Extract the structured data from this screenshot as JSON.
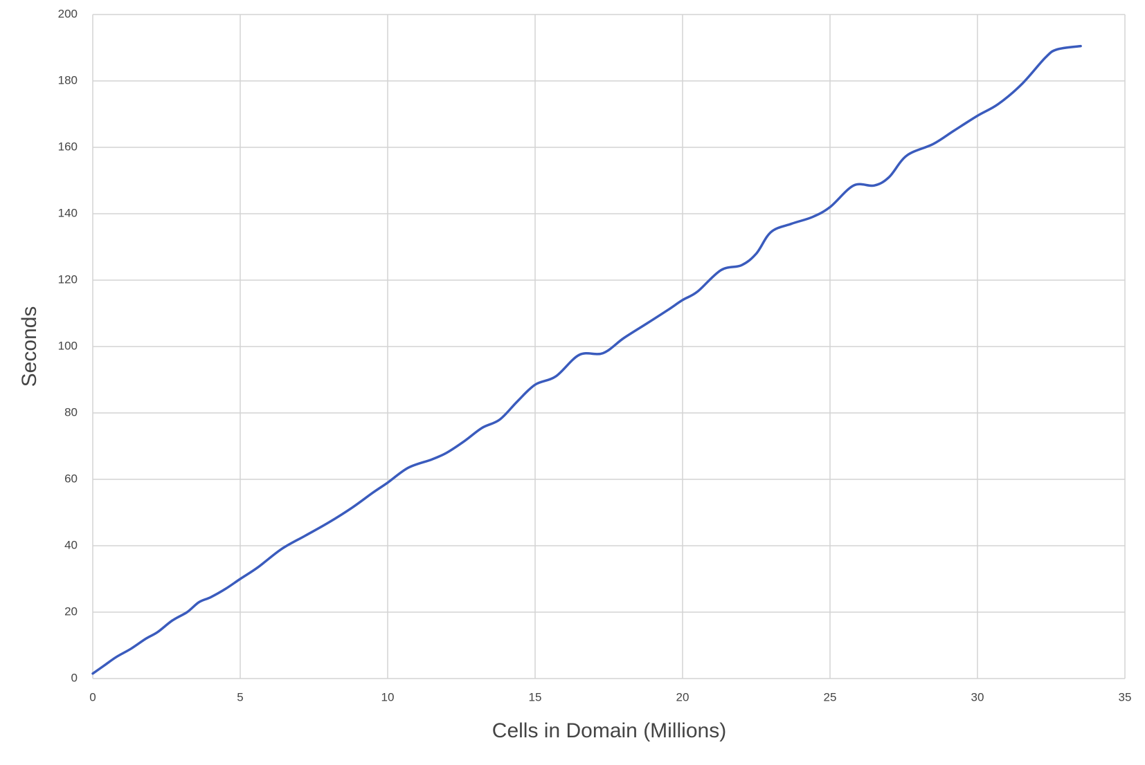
{
  "chart_data": {
    "type": "line",
    "x_label": "Cells in Domain (Millions)",
    "y_label": "Seconds",
    "x": [
      0,
      0.4,
      0.8,
      1.3,
      1.8,
      2.2,
      2.7,
      3.2,
      3.6,
      4.0,
      4.5,
      5.0,
      5.6,
      6.4,
      7.2,
      8.0,
      8.8,
      9.5,
      10.0,
      10.7,
      11.5,
      12.0,
      12.6,
      13.2,
      13.8,
      14.4,
      15.0,
      15.7,
      16.5,
      17.3,
      18.0,
      18.8,
      19.5,
      20.0,
      20.5,
      21.3,
      22.0,
      22.5,
      23.0,
      23.7,
      24.4,
      25.0,
      25.8,
      26.5,
      27.0,
      27.6,
      28.5,
      29.2,
      30.0,
      30.7,
      31.5,
      32.3,
      32.7,
      33.5
    ],
    "series": [
      {
        "color": "#3a5bbd",
        "values": [
          1.5,
          4,
          6.5,
          9,
          12,
          14,
          17.5,
          20,
          23,
          24.5,
          27,
          30,
          33.5,
          39,
          43,
          47,
          51.5,
          56,
          59,
          63.5,
          66,
          68,
          71.5,
          75.5,
          78,
          83.5,
          88.5,
          91,
          97.5,
          98,
          102.5,
          107,
          111,
          114,
          116.5,
          123,
          124.5,
          128,
          134.5,
          137,
          139,
          142,
          148.5,
          148.5,
          151,
          157.5,
          161,
          165,
          169.5,
          173,
          179,
          187,
          189.5,
          190.5
        ]
      }
    ],
    "xlim": [
      0,
      35
    ],
    "xticks": [
      0,
      5,
      10,
      15,
      20,
      25,
      30,
      35
    ],
    "ylim": [
      0,
      200
    ],
    "yticks": [
      0,
      20,
      40,
      60,
      80,
      100,
      120,
      140,
      160,
      180,
      200
    ],
    "grid": true
  }
}
